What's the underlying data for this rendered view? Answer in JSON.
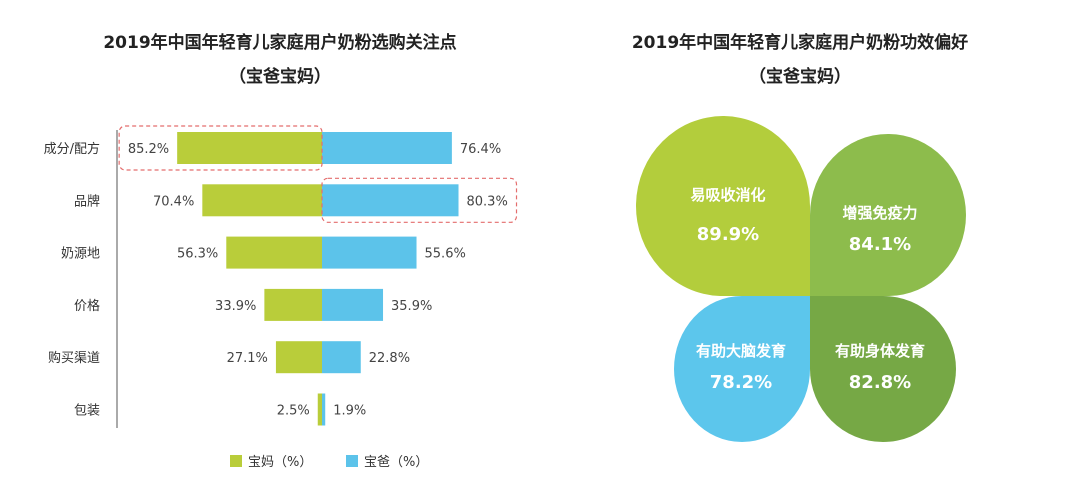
{
  "colors": {
    "mom": "#b9cd3a",
    "dad": "#5cc3ea",
    "highlight": "#e46d6d",
    "petal_1": "#b3cd3c",
    "petal_2": "#8dbc4c",
    "petal_3": "#5cc6ec",
    "petal_4": "#76a845"
  },
  "left": {
    "title_line1": "2019年中国年轻育儿家庭用户奶粉选购关注点",
    "title_line2": "（宝爸宝妈）"
  },
  "right": {
    "title_line1": "2019年中国年轻育儿家庭用户奶粉功效偏好",
    "title_line2": "（宝爸宝妈）"
  },
  "chart_data": [
    {
      "type": "bar",
      "orientation": "horizontal-diverging",
      "title": "2019年中国年轻育儿家庭用户奶粉选购关注点（宝爸宝妈）",
      "categories": [
        "成分/配方",
        "品牌",
        "奶源地",
        "价格",
        "购买渠道",
        "包装"
      ],
      "series": [
        {
          "name": "宝妈（%）",
          "values": [
            85.2,
            70.4,
            56.3,
            33.9,
            27.1,
            2.5
          ],
          "labels": [
            "85.2%",
            "70.4%",
            "56.3%",
            "33.9%",
            "27.1%",
            "2.5%"
          ]
        },
        {
          "name": "宝爸（%）",
          "values": [
            76.4,
            80.3,
            55.6,
            35.9,
            22.8,
            1.9
          ],
          "labels": [
            "76.4%",
            "80.3%",
            "55.6%",
            "35.9%",
            "22.8%",
            "1.9%"
          ]
        }
      ],
      "highlights": [
        {
          "series": 0,
          "category": 0
        },
        {
          "series": 1,
          "category": 1
        }
      ],
      "legend": [
        "宝妈（%）",
        "宝爸（%）"
      ],
      "legend_position": "bottom",
      "xlim": [
        0,
        100
      ]
    },
    {
      "type": "pie",
      "style": "four-petal",
      "title": "2019年中国年轻育儿家庭用户奶粉功效偏好（宝爸宝妈）",
      "items": [
        {
          "name": "易吸收消化",
          "value": 89.9,
          "label": "89.9%"
        },
        {
          "name": "增强免疫力",
          "value": 84.1,
          "label": "84.1%"
        },
        {
          "name": "有助大脑发育",
          "value": 78.2,
          "label": "78.2%"
        },
        {
          "name": "有助身体发育",
          "value": 82.8,
          "label": "82.8%"
        }
      ]
    }
  ]
}
